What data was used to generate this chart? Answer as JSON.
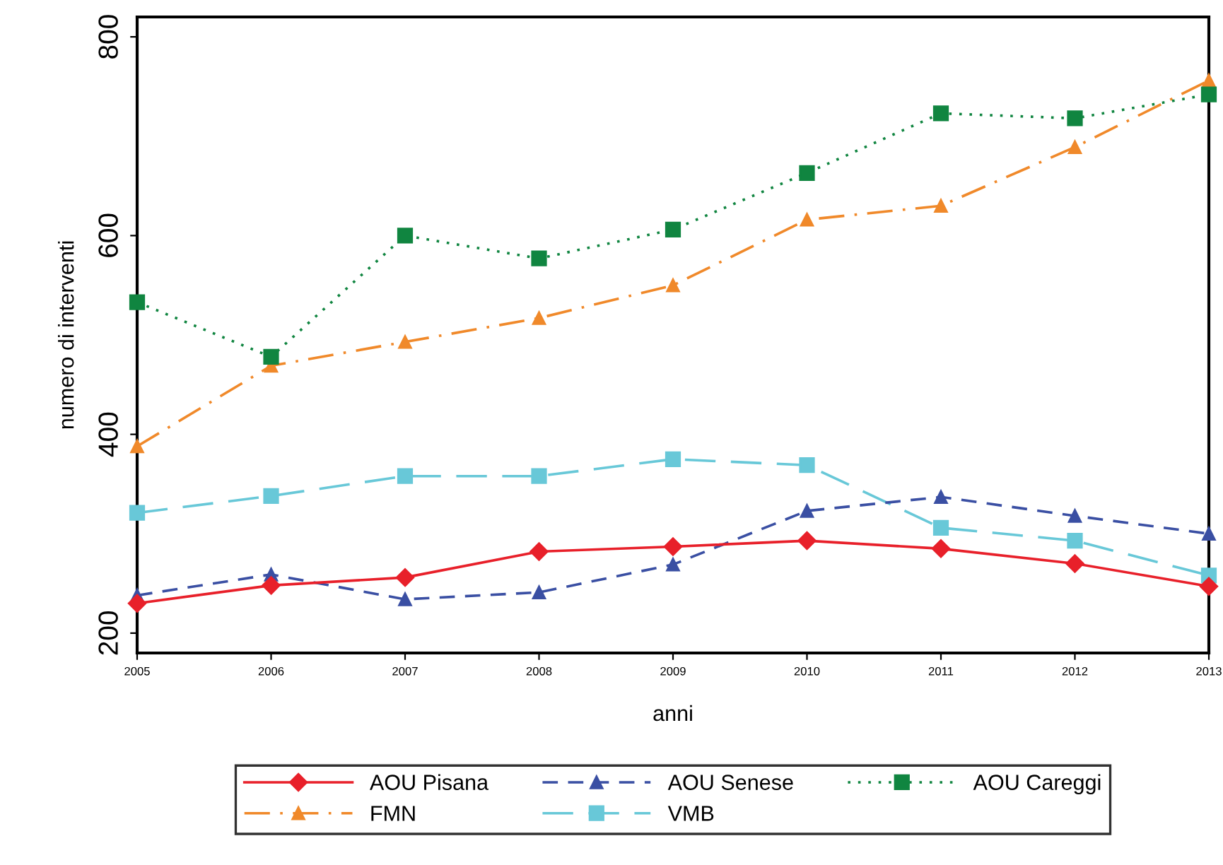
{
  "chart_data": {
    "type": "line",
    "xlabel": "anni",
    "ylabel": "numero di interventi",
    "x": [
      2005,
      2006,
      2007,
      2008,
      2009,
      2010,
      2011,
      2012,
      2013
    ],
    "xlim": [
      2005,
      2013
    ],
    "xticks": [
      2005,
      2006,
      2007,
      2008,
      2009,
      2010,
      2011,
      2012,
      2013
    ],
    "ylim": [
      180,
      820
    ],
    "yticks": [
      200,
      400,
      600,
      800
    ],
    "grid": false,
    "legend": "bottom",
    "series": [
      {
        "name": "AOU Pisana",
        "color": "#e8202a",
        "marker": "diamond",
        "line_style": "solid",
        "values": [
          230,
          248,
          256,
          282,
          287,
          293,
          285,
          270,
          247
        ]
      },
      {
        "name": "AOU Senese",
        "color": "#3a4fa3",
        "marker": "triangle",
        "line_style": "dashed",
        "values": [
          238,
          259,
          234,
          241,
          269,
          323,
          337,
          318,
          300
        ]
      },
      {
        "name": "AOU Careggi",
        "color": "#108540",
        "marker": "square",
        "line_style": "dotted",
        "values": [
          533,
          478,
          600,
          577,
          606,
          663,
          723,
          718,
          742
        ]
      },
      {
        "name": "FMN",
        "color": "#f0892a",
        "marker": "triangle",
        "line_style": "dashdot",
        "values": [
          388,
          469,
          493,
          517,
          550,
          616,
          630,
          689,
          756
        ]
      },
      {
        "name": "VMB",
        "color": "#68c8d8",
        "marker": "square",
        "line_style": "longdash",
        "values": [
          321,
          338,
          358,
          358,
          375,
          369,
          306,
          293,
          258
        ]
      }
    ]
  }
}
